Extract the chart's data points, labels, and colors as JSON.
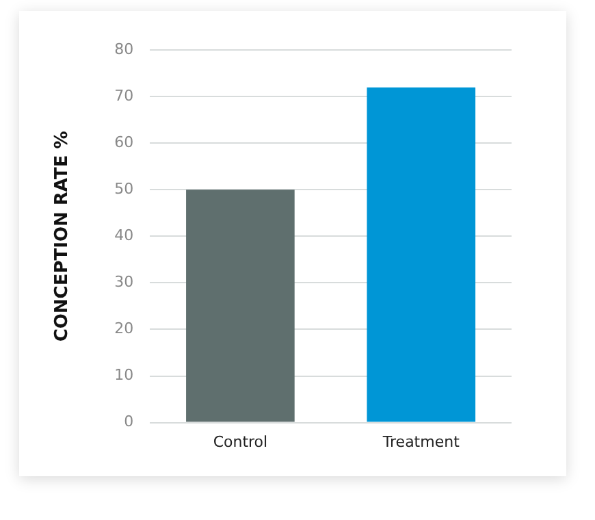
{
  "chart_data": {
    "type": "bar",
    "ylabel": "CONCEPTION RATE %",
    "categories": [
      "Control",
      "Treatment"
    ],
    "values": [
      50,
      72
    ],
    "colors": [
      "#5f6f6e",
      "#0096d6"
    ],
    "ylim": [
      0,
      80
    ],
    "yticks": [
      0,
      10,
      20,
      30,
      40,
      50,
      60,
      70,
      80
    ],
    "grid": "y"
  }
}
